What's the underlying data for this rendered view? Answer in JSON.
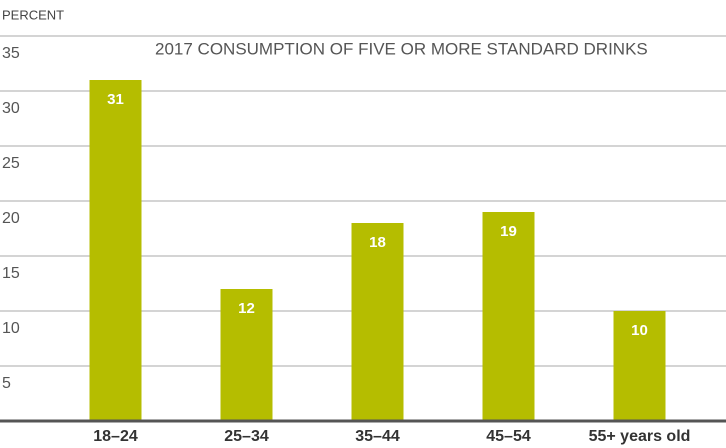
{
  "chart_data": {
    "type": "bar",
    "title": "2017 CONSUMPTION OF FIVE OR MORE STANDARD DRINKS",
    "y_label": "PERCENT",
    "categories": [
      "18–24",
      "25–34",
      "35–44",
      "45–54",
      "55+ years old"
    ],
    "values": [
      31,
      12,
      18,
      19,
      10
    ],
    "color": "#b5bd00",
    "ylim": [
      0,
      35
    ],
    "yticks": [
      5,
      10,
      15,
      20,
      25,
      30,
      35
    ],
    "grid": true
  }
}
